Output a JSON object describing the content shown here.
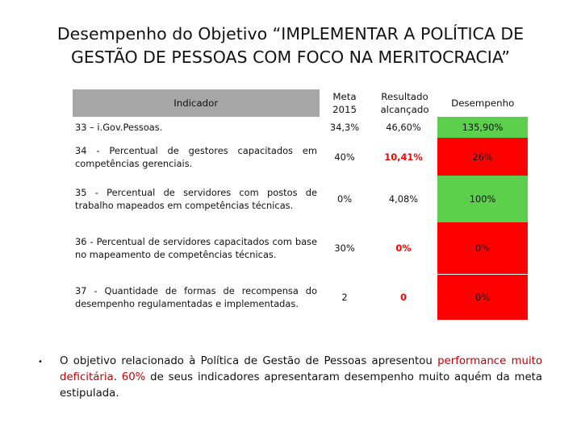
{
  "title": "Desempenho do Objetivo “IMPLEMENTAR A POLÍTICA DE GESTÃO DE PESSOAS COM FOCO NA MERITOCRACIA”",
  "table": {
    "headers": {
      "indicator": "Indicador",
      "target": "Meta 2015",
      "result": "Resultado alcançado",
      "performance": "Desempenho"
    },
    "rows": [
      {
        "indicator": "33 – i.Gov.Pessoas.",
        "target": "34,3%",
        "result": "46,60%",
        "performance": "135,90%",
        "status": "green"
      },
      {
        "indicator": "34 - Percentual de gestores capacitados em competências gerenciais.",
        "target": "40%",
        "result": "10,41%",
        "performance": "26%",
        "status": "red"
      },
      {
        "indicator": "35 - Percentual de servidores com postos de trabalho mapeados em competências técnicas.",
        "target": "0%",
        "result": "4,08%",
        "performance": "100%",
        "status": "green"
      },
      {
        "indicator": "36 - Percentual de servidores capacitados com base no mapeamento de competências técnicas.",
        "target": "30%",
        "result": "0%",
        "performance": "0%",
        "status": "red"
      },
      {
        "indicator": "37 - Quantidade de formas de recompensa do desempenho regulamentadas e implementadas.",
        "target": "2",
        "result": "0",
        "performance": "0%",
        "status": "red"
      }
    ]
  },
  "summary": {
    "bullet": "•",
    "part1": "O objetivo relacionado à Política de Gestão de Pessoas apresentou ",
    "highlight1": "performance muito deficitária",
    "part2": ". ",
    "highlight2": "60%",
    "part3": " de seus indicadores apresentaram desempenho muito aquém da meta estipulada."
  },
  "colors": {
    "header_bg": "#a6a6a6",
    "green": "#5cd04c",
    "red": "#ff0000",
    "highlight": "#c00000"
  }
}
